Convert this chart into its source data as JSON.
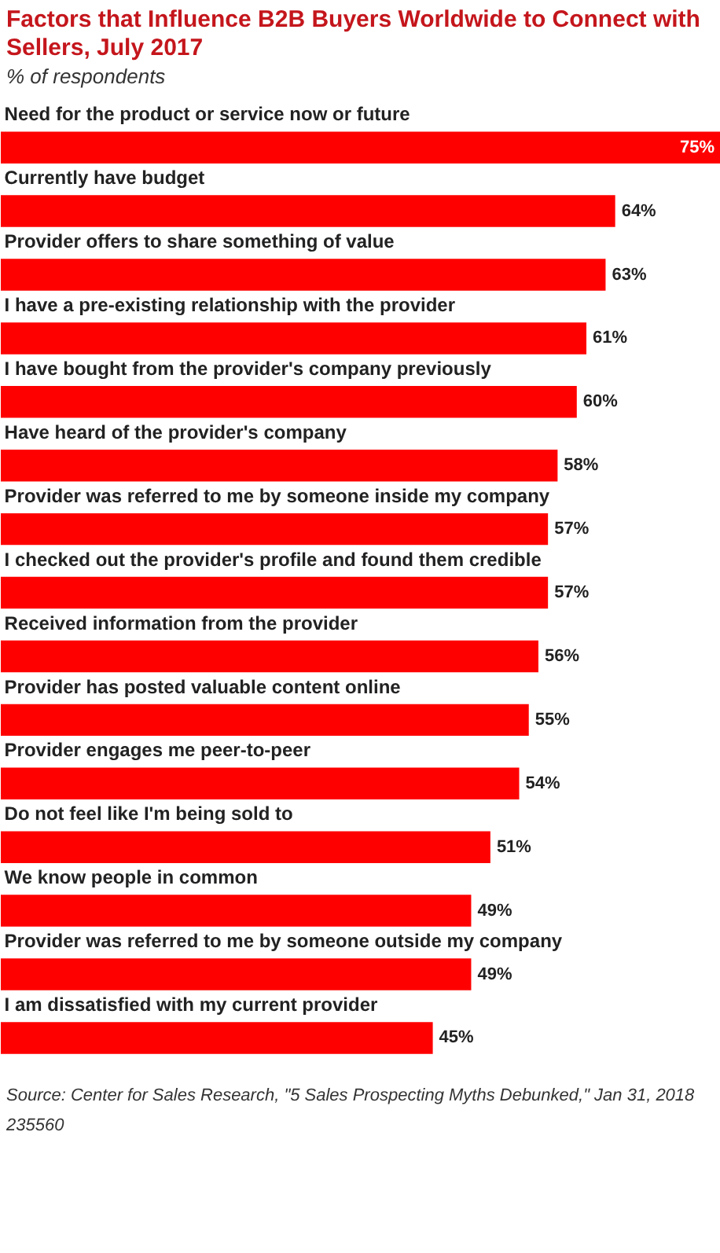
{
  "chart_data": {
    "type": "bar",
    "orientation": "horizontal",
    "title": "Factors that Influence B2B Buyers Worldwide to Connect with Sellers, July 2017",
    "subtitle": "% of respondents",
    "categories": [
      "Need for the product or service now or future",
      "Currently have budget",
      "Provider offers to share something of value",
      "I have a pre-existing relationship with the provider",
      "I have bought from the provider's company previously",
      "Have heard of the provider's company",
      "Provider was referred to me by someone inside my company",
      "I checked out the provider's profile and found them credible",
      "Received information from the provider",
      "Provider has posted valuable content online",
      "Provider engages me peer-to-peer",
      "Do not feel like I'm being sold to",
      "We know people in common",
      "Provider was referred to me by someone outside my company",
      "I am dissatisfied with my current provider"
    ],
    "values": [
      75,
      64,
      63,
      61,
      60,
      58,
      57,
      57,
      56,
      55,
      54,
      51,
      49,
      49,
      45
    ],
    "value_labels": [
      "75%",
      "64%",
      "63%",
      "61%",
      "60%",
      "58%",
      "57%",
      "57%",
      "56%",
      "55%",
      "54%",
      "51%",
      "49%",
      "49%",
      "45%"
    ],
    "color": "#ff0000",
    "annotations": [
      "Source: Center for Sales Research, \"5 Sales Prospecting Myths Debunked,\" Jan 31, 2018",
      "235560"
    ]
  }
}
